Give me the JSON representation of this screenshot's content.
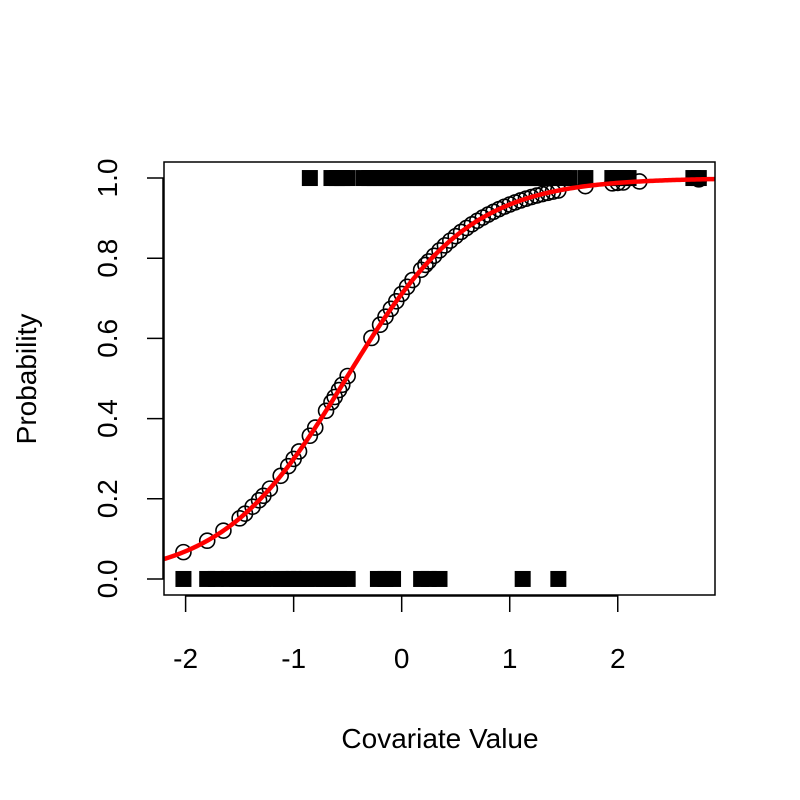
{
  "chart_data": {
    "type": "scatter",
    "title": "",
    "xlabel": "Covariate Value",
    "ylabel": "Probability",
    "xlim": [
      -2.2,
      2.9
    ],
    "ylim": [
      -0.04,
      1.04
    ],
    "x_ticks": [
      "-2",
      "-1",
      "0",
      "1",
      "2"
    ],
    "y_ticks": [
      "0.0",
      "0.2",
      "0.4",
      "0.6",
      "0.8",
      "1.0"
    ],
    "grid": false,
    "legend": "none",
    "colors": {
      "points": "#000000",
      "curve": "#ff0000"
    },
    "curve": {
      "type": "logistic",
      "intercept": 0.9,
      "slope": 1.75
    },
    "series": [
      {
        "kind": "observed-outcome-0",
        "marker": "filled-square",
        "y": 0,
        "x": [
          -2.02,
          -1.8,
          -1.72,
          -1.6,
          -1.52,
          -1.45,
          -1.4,
          -1.33,
          -1.28,
          -1.2,
          -1.12,
          -1.05,
          -1.0,
          -0.95,
          -0.88,
          -0.8,
          -0.72,
          -0.65,
          -0.58,
          -0.5,
          -0.22,
          -0.15,
          -0.08,
          0.18,
          0.25,
          0.35,
          1.12,
          1.45
        ]
      },
      {
        "kind": "observed-outcome-1",
        "marker": "filled-square",
        "y": 1,
        "x": [
          -0.85,
          -0.65,
          -0.6,
          -0.55,
          -0.5,
          -0.35,
          -0.3,
          -0.25,
          -0.2,
          -0.15,
          -0.1,
          -0.05,
          0.0,
          0.05,
          0.1,
          0.15,
          0.2,
          0.25,
          0.3,
          0.35,
          0.4,
          0.45,
          0.5,
          0.55,
          0.6,
          0.65,
          0.7,
          0.75,
          0.8,
          0.85,
          0.9,
          0.95,
          1.0,
          1.05,
          1.1,
          1.15,
          1.2,
          1.25,
          1.3,
          1.35,
          1.4,
          1.5,
          1.55,
          1.7,
          1.95,
          2.0,
          2.05,
          2.1,
          2.7,
          2.75
        ]
      },
      {
        "kind": "fitted-probability",
        "marker": "open-circle",
        "x": [
          -2.02,
          -1.8,
          -1.65,
          -1.5,
          -1.45,
          -1.38,
          -1.32,
          -1.28,
          -1.22,
          -1.12,
          -1.05,
          -1.0,
          -0.95,
          -0.85,
          -0.8,
          -0.7,
          -0.65,
          -0.62,
          -0.58,
          -0.55,
          -0.5,
          -0.28,
          -0.2,
          -0.15,
          -0.1,
          -0.05,
          0.0,
          0.05,
          0.1,
          0.18,
          0.22,
          0.25,
          0.3,
          0.35,
          0.4,
          0.45,
          0.5,
          0.55,
          0.6,
          0.65,
          0.7,
          0.75,
          0.8,
          0.85,
          0.9,
          0.95,
          1.0,
          1.05,
          1.1,
          1.15,
          1.2,
          1.25,
          1.3,
          1.35,
          1.4,
          1.45,
          1.7,
          1.95,
          2.0,
          2.05,
          2.2,
          2.75
        ]
      }
    ]
  }
}
